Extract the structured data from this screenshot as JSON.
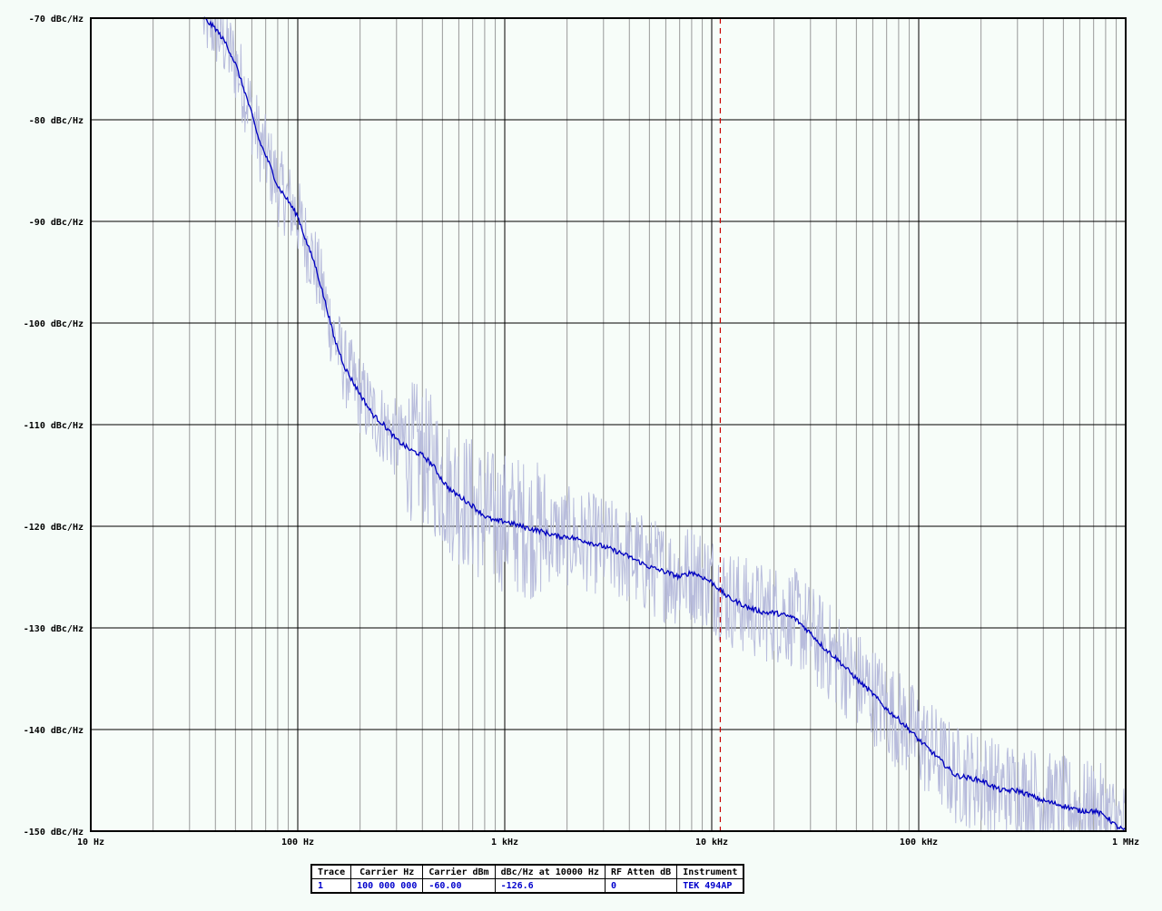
{
  "chart_data": {
    "type": "line",
    "x_scale": "log",
    "xlim": [
      10,
      1000000
    ],
    "ylim": [
      -150,
      -70
    ],
    "grid": true,
    "y_ticks": [
      {
        "value": -70,
        "label": "-70 dBc/Hz"
      },
      {
        "value": -80,
        "label": "-80 dBc/Hz"
      },
      {
        "value": -90,
        "label": "-90 dBc/Hz"
      },
      {
        "value": -100,
        "label": "-100 dBc/Hz"
      },
      {
        "value": -110,
        "label": "-110 dBc/Hz"
      },
      {
        "value": -120,
        "label": "-120 dBc/Hz"
      },
      {
        "value": -130,
        "label": "-130 dBc/Hz"
      },
      {
        "value": -140,
        "label": "-140 dBc/Hz"
      },
      {
        "value": -150,
        "label": "-150 dBc/Hz"
      }
    ],
    "x_ticks": [
      {
        "value": 10,
        "label": "10 Hz"
      },
      {
        "value": 100,
        "label": "100 Hz"
      },
      {
        "value": 1000,
        "label": "1 kHz"
      },
      {
        "value": 10000,
        "label": "10 kHz"
      },
      {
        "value": 100000,
        "label": "100 kHz"
      },
      {
        "value": 1000000,
        "label": "1 MHz"
      }
    ],
    "marker_x": 11000,
    "colors": {
      "smoothed": "#0000c0",
      "raw": "#b8bcdc",
      "marker": "#cc0000",
      "grid_major": "#000000",
      "grid_minor": "#999999"
    },
    "series": [
      {
        "x": [
          35,
          40,
          45,
          50,
          55,
          60,
          65,
          70,
          75,
          80,
          90,
          100,
          110,
          120,
          130,
          140,
          150,
          170,
          200,
          230,
          260,
          300,
          350,
          400,
          450,
          500,
          550,
          600,
          700,
          800,
          900,
          1000,
          1200,
          1500,
          1800,
          2000,
          2500,
          3000,
          3500,
          4000,
          5000,
          6000,
          7000,
          8000,
          9000,
          10000,
          12000,
          15000,
          18000,
          20000,
          25000,
          30000,
          35000,
          40000,
          50000,
          60000,
          70000,
          80000,
          90000,
          100000,
          120000,
          150000,
          200000,
          250000,
          300000,
          400000,
          500000,
          600000,
          700000,
          800000,
          900000,
          1000000
        ],
        "y": [
          -70,
          -71,
          -72.5,
          -74.5,
          -77,
          -79.5,
          -82,
          -83.5,
          -85,
          -86.5,
          -88,
          -89.5,
          -92,
          -94,
          -96.5,
          -99,
          -101.5,
          -104.5,
          -107,
          -109,
          -110,
          -111.5,
          -112.5,
          -113,
          -114,
          -115.5,
          -116.5,
          -117,
          -118,
          -119,
          -119.5,
          -119.5,
          -120,
          -120.5,
          -121,
          -121,
          -121.5,
          -122,
          -122.5,
          -123,
          -124,
          -124.5,
          -125,
          -124.5,
          -125,
          -125.5,
          -127,
          -128,
          -128.5,
          -128.5,
          -129,
          -130.5,
          -132,
          -133,
          -135,
          -136.5,
          -138,
          -139,
          -140,
          -141,
          -142.5,
          -144.5,
          -145,
          -146,
          -146,
          -147,
          -147.5,
          -148,
          -148,
          -148.5,
          -149.5,
          -150
        ]
      }
    ]
  },
  "info_table": {
    "headers": [
      "Trace",
      "Carrier Hz",
      "Carrier dBm",
      "dBc/Hz at 10000 Hz",
      "RF Atten dB",
      "Instrument"
    ],
    "row": [
      "1",
      "100 000 000",
      "-60.00",
      "-126.6",
      "0",
      "TEK 494AP"
    ]
  }
}
